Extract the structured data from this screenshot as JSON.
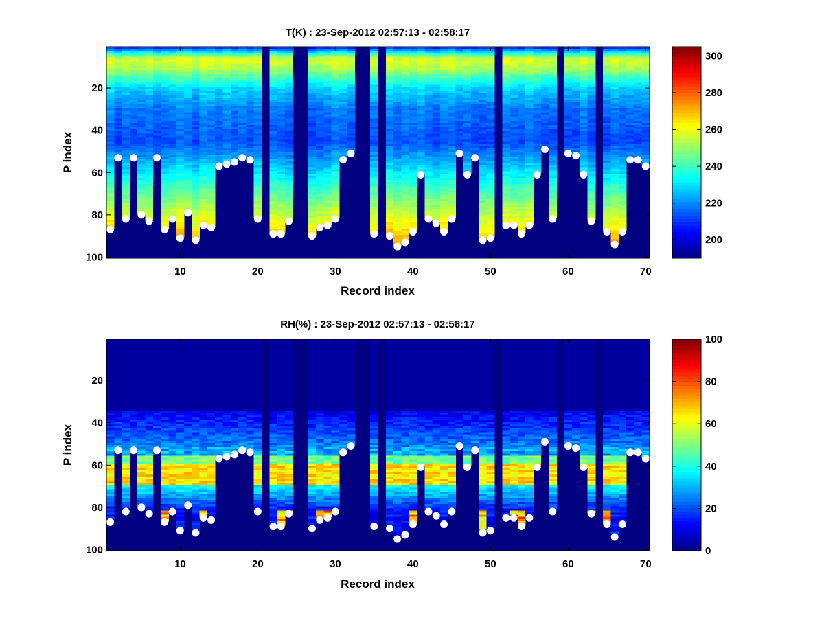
{
  "chart_data": [
    {
      "type": "heatmap",
      "title": "T(K) : 23-Sep-2012 02:57:13 - 02:58:17",
      "xlabel": "Record index",
      "ylabel": "P index",
      "xlim": [
        0.5,
        70.5
      ],
      "ylim": [
        100.5,
        0.5
      ],
      "xticks": [
        10,
        20,
        30,
        40,
        50,
        60,
        70
      ],
      "yticks": [
        20,
        40,
        60,
        80,
        100
      ],
      "colorbar": {
        "min": 190,
        "max": 305,
        "ticks": [
          200,
          220,
          240,
          260,
          280,
          300
        ],
        "colormap": "jet"
      },
      "missing_records": [
        21,
        25,
        26,
        33,
        34,
        36,
        51,
        59,
        64
      ],
      "surface_index": [
        87,
        53,
        82,
        53,
        80,
        83,
        53,
        87,
        82,
        91,
        79,
        92,
        85,
        86,
        57,
        56,
        55,
        53,
        54,
        82,
        100,
        89,
        89,
        83,
        100,
        100,
        90,
        86,
        85,
        82,
        54,
        51,
        100,
        100,
        89,
        100,
        90,
        95,
        93,
        88,
        61,
        82,
        84,
        88,
        82,
        51,
        61,
        53,
        92,
        91,
        100,
        85,
        85,
        89,
        85,
        61,
        49,
        82,
        100,
        51,
        52,
        61,
        83,
        100,
        88,
        94,
        88,
        54,
        54,
        57
      ],
      "marker_p_index": [
        87,
        53,
        82,
        53,
        80,
        83,
        53,
        87,
        82,
        91,
        79,
        92,
        85,
        86,
        57,
        56,
        55,
        53,
        54,
        82,
        null,
        89,
        89,
        83,
        null,
        null,
        90,
        86,
        85,
        82,
        54,
        51,
        null,
        null,
        89,
        null,
        90,
        95,
        93,
        88,
        61,
        82,
        84,
        88,
        82,
        51,
        61,
        53,
        92,
        91,
        null,
        85,
        85,
        89,
        85,
        61,
        49,
        82,
        null,
        51,
        52,
        61,
        83,
        null,
        88,
        94,
        88,
        54,
        54,
        57
      ],
      "marker": "white circle"
    },
    {
      "type": "heatmap",
      "title": "RH(%) : 23-Sep-2012 02:57:13 - 02:58:17",
      "xlabel": "Record index",
      "ylabel": "P index",
      "xlim": [
        0.5,
        70.5
      ],
      "ylim": [
        100.5,
        0.5
      ],
      "xticks": [
        10,
        20,
        30,
        40,
        50,
        60,
        70
      ],
      "yticks": [
        20,
        40,
        60,
        80,
        100
      ],
      "colorbar": {
        "min": 0,
        "max": 100,
        "ticks": [
          0,
          20,
          40,
          60,
          80,
          100
        ],
        "colormap": "jet"
      },
      "missing_records": [
        21,
        25,
        26,
        33,
        34,
        36,
        51,
        59,
        64
      ],
      "surface_index": [
        87,
        53,
        82,
        53,
        80,
        83,
        53,
        87,
        82,
        91,
        79,
        92,
        85,
        86,
        57,
        56,
        55,
        53,
        54,
        82,
        100,
        89,
        89,
        83,
        100,
        100,
        90,
        86,
        85,
        82,
        54,
        51,
        100,
        100,
        89,
        100,
        90,
        95,
        93,
        88,
        61,
        82,
        84,
        88,
        82,
        51,
        61,
        53,
        92,
        91,
        100,
        85,
        85,
        89,
        85,
        61,
        49,
        82,
        100,
        51,
        52,
        61,
        83,
        100,
        88,
        94,
        88,
        54,
        54,
        57
      ],
      "marker_p_index": [
        87,
        53,
        82,
        53,
        80,
        83,
        53,
        87,
        82,
        91,
        79,
        92,
        85,
        86,
        57,
        56,
        55,
        53,
        54,
        82,
        null,
        89,
        89,
        83,
        null,
        null,
        90,
        86,
        85,
        82,
        54,
        51,
        null,
        null,
        89,
        null,
        90,
        95,
        93,
        88,
        61,
        82,
        84,
        88,
        82,
        51,
        61,
        53,
        92,
        91,
        null,
        85,
        85,
        89,
        85,
        61,
        49,
        82,
        null,
        51,
        52,
        61,
        83,
        null,
        88,
        94,
        88,
        54,
        54,
        57
      ],
      "marker": "white circle"
    }
  ]
}
